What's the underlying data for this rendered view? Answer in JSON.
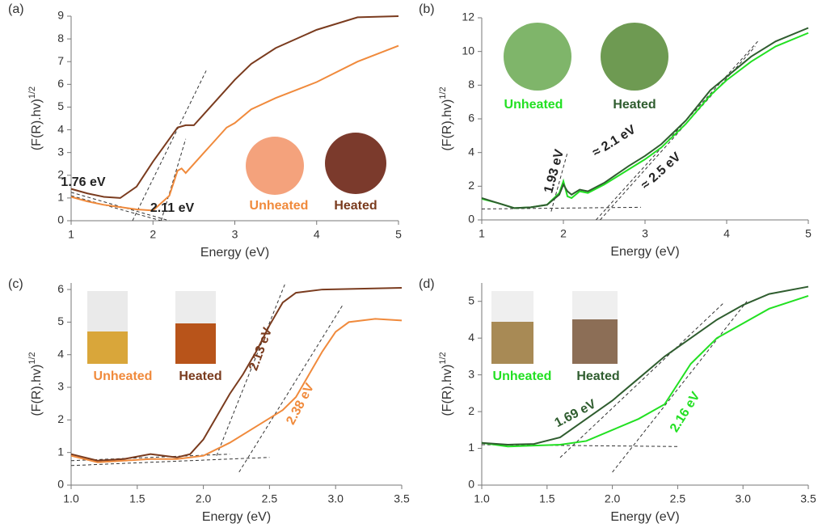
{
  "chart_data": [
    {
      "type": "line",
      "panel": "(a)",
      "x_label": "Energy (eV)",
      "y_label": "(F(R).hv)",
      "y_label_sup": "1/2",
      "xlim": [
        1,
        5
      ],
      "ylim": [
        0,
        9
      ],
      "xticks": [
        1,
        2,
        3,
        4,
        5
      ],
      "yticks": [
        0,
        1,
        2,
        3,
        4,
        5,
        6,
        7,
        8,
        9
      ],
      "series": [
        {
          "name": "Unheated",
          "color": "#f08a3c",
          "x": [
            1,
            1.2,
            1.4,
            1.6,
            1.8,
            2.0,
            2.2,
            2.3,
            2.35,
            2.4,
            2.5,
            2.7,
            2.9,
            3.0,
            3.2,
            3.5,
            4.0,
            4.5,
            5.0
          ],
          "values": [
            1.05,
            0.85,
            0.7,
            0.6,
            0.5,
            0.45,
            1.1,
            2.2,
            2.3,
            2.1,
            2.5,
            3.3,
            4.1,
            4.3,
            4.9,
            5.4,
            6.1,
            7.0,
            7.7
          ]
        },
        {
          "name": "Heated",
          "color": "#7a3b1e",
          "x": [
            1,
            1.2,
            1.4,
            1.6,
            1.8,
            2.0,
            2.2,
            2.3,
            2.4,
            2.5,
            2.6,
            2.8,
            3.0,
            3.2,
            3.5,
            4.0,
            4.5,
            5.0
          ],
          "values": [
            1.4,
            1.2,
            1.05,
            1.0,
            1.5,
            2.6,
            3.6,
            4.1,
            4.2,
            4.2,
            4.6,
            5.4,
            6.2,
            6.9,
            7.6,
            8.4,
            8.95,
            9.0
          ]
        }
      ],
      "tangents": [
        {
          "x": [
            1.75,
            2.65
          ],
          "y": [
            0,
            6.6
          ]
        },
        {
          "x": [
            2.1,
            2.4
          ],
          "y": [
            0,
            3.6
          ]
        },
        {
          "x": [
            1,
            2.1
          ],
          "y": [
            1.1,
            0
          ]
        },
        {
          "x": [
            1,
            2.2
          ],
          "y": [
            1.25,
            0
          ]
        }
      ],
      "annotations": [
        "1.76 eV",
        "2.11 eV"
      ]
    },
    {
      "type": "line",
      "panel": "(b)",
      "x_label": "Energy (eV)",
      "y_label": "(F(R).hv)",
      "y_label_sup": "1/2",
      "xlim": [
        1,
        5
      ],
      "ylim": [
        0,
        12
      ],
      "xticks": [
        1,
        2,
        3,
        4,
        5
      ],
      "yticks": [
        0,
        2,
        4,
        6,
        8,
        10,
        12
      ],
      "series": [
        {
          "name": "Unheated",
          "color": "#22e022",
          "x": [
            1,
            1.2,
            1.4,
            1.6,
            1.8,
            1.95,
            2.0,
            2.05,
            2.1,
            2.2,
            2.3,
            2.5,
            2.8,
            3.0,
            3.2,
            3.5,
            3.8,
            4.0,
            4.3,
            4.6,
            5.0
          ],
          "values": [
            1.25,
            1.0,
            0.7,
            0.75,
            0.9,
            1.6,
            2.3,
            1.4,
            1.3,
            1.7,
            1.6,
            2.1,
            3.0,
            3.6,
            4.3,
            5.7,
            7.4,
            8.3,
            9.4,
            10.3,
            11.1
          ]
        },
        {
          "name": "Heated",
          "color": "#2f5d2f",
          "x": [
            1,
            1.2,
            1.4,
            1.6,
            1.8,
            1.95,
            2.0,
            2.05,
            2.1,
            2.2,
            2.3,
            2.5,
            2.8,
            3.0,
            3.2,
            3.5,
            3.8,
            4.0,
            4.3,
            4.6,
            5.0
          ],
          "values": [
            1.3,
            1.0,
            0.7,
            0.75,
            0.9,
            1.5,
            2.1,
            1.7,
            1.5,
            1.8,
            1.7,
            2.2,
            3.2,
            3.8,
            4.5,
            5.9,
            7.7,
            8.5,
            9.7,
            10.6,
            11.4
          ]
        }
      ],
      "tangents": [
        {
          "x": [
            1.85,
            2.05
          ],
          "y": [
            0.5,
            4.0
          ]
        },
        {
          "x": [
            2.4,
            4.4
          ],
          "y": [
            0,
            10.7
          ]
        },
        {
          "x": [
            2.45,
            4.35
          ],
          "y": [
            0,
            10.3
          ]
        },
        {
          "x": [
            1,
            2.95
          ],
          "y": [
            0.65,
            0.75
          ]
        }
      ],
      "annotations": [
        "1.93 eV",
        "≈ 2.1 eV",
        "≈ 2.5 eV"
      ]
    },
    {
      "type": "line",
      "panel": "(c)",
      "x_label": "Energy (eV)",
      "y_label": "(F(R).hv)",
      "y_label_sup": "1/2",
      "xlim": [
        1,
        3.5
      ],
      "ylim": [
        0,
        6.2
      ],
      "xticks": [
        {
          "value": 1,
          "label": "1.0"
        },
        1.5,
        {
          "value": 2,
          "label": "2.0"
        },
        2.5,
        {
          "value": 3,
          "label": "3.0"
        },
        3.5
      ],
      "yticks": [
        0,
        1,
        2,
        3,
        4,
        5,
        6
      ],
      "series": [
        {
          "name": "Unheated",
          "color": "#f08a3c",
          "x": [
            1.0,
            1.2,
            1.4,
            1.6,
            1.8,
            2.0,
            2.2,
            2.4,
            2.6,
            2.7,
            2.8,
            2.9,
            3.0,
            3.1,
            3.3,
            3.5
          ],
          "values": [
            0.9,
            0.7,
            0.75,
            0.8,
            0.8,
            0.9,
            1.3,
            1.8,
            2.3,
            2.7,
            3.4,
            4.1,
            4.7,
            5.0,
            5.1,
            5.05
          ]
        },
        {
          "name": "Heated",
          "color": "#7a3b1e",
          "x": [
            1.0,
            1.2,
            1.4,
            1.6,
            1.8,
            1.9,
            2.0,
            2.1,
            2.2,
            2.3,
            2.4,
            2.5,
            2.6,
            2.7,
            2.9,
            3.5
          ],
          "values": [
            0.95,
            0.75,
            0.8,
            0.95,
            0.85,
            0.95,
            1.4,
            2.1,
            2.8,
            3.4,
            4.1,
            4.9,
            5.6,
            5.9,
            6.0,
            6.05
          ]
        }
      ],
      "tangents": [
        {
          "x": [
            2.1,
            2.62
          ],
          "y": [
            0.9,
            6.2
          ]
        },
        {
          "x": [
            2.27,
            3.05
          ],
          "y": [
            0.4,
            5.5
          ]
        },
        {
          "x": [
            1,
            2.5
          ],
          "y": [
            0.6,
            0.85
          ]
        },
        {
          "x": [
            1,
            2.2
          ],
          "y": [
            0.75,
            0.95
          ]
        }
      ],
      "annotations": [
        "2.13 eV",
        "2.38 eV"
      ]
    },
    {
      "type": "line",
      "panel": "(d)",
      "x_label": "Energy (eV)",
      "y_label": "(F(R).hv)",
      "y_label_sup": "1/2",
      "xlim": [
        1,
        3.5
      ],
      "ylim": [
        0,
        5.5
      ],
      "xticks": [
        {
          "value": 1,
          "label": "1.0"
        },
        1.5,
        {
          "value": 2,
          "label": "2.0"
        },
        2.5,
        {
          "value": 3,
          "label": "3.0"
        },
        3.5
      ],
      "yticks": [
        0,
        1,
        2,
        3,
        4,
        5
      ],
      "series": [
        {
          "name": "Unheated",
          "color": "#22e022",
          "x": [
            1.0,
            1.2,
            1.6,
            1.8,
            2.0,
            2.2,
            2.4,
            2.6,
            2.8,
            3.0,
            3.2,
            3.5
          ],
          "values": [
            1.15,
            1.05,
            1.1,
            1.2,
            1.5,
            1.8,
            2.2,
            3.3,
            4.0,
            4.4,
            4.8,
            5.15
          ]
        },
        {
          "name": "Heated",
          "color": "#2f5d2f",
          "x": [
            1.0,
            1.2,
            1.4,
            1.6,
            1.8,
            2.0,
            2.2,
            2.4,
            2.6,
            2.8,
            3.0,
            3.2,
            3.5
          ],
          "values": [
            1.15,
            1.1,
            1.12,
            1.3,
            1.8,
            2.3,
            2.9,
            3.5,
            4.0,
            4.5,
            4.9,
            5.2,
            5.4
          ]
        }
      ],
      "tangents": [
        {
          "x": [
            1.6,
            2.85
          ],
          "y": [
            0.75,
            4.95
          ]
        },
        {
          "x": [
            2.0,
            3.03
          ],
          "y": [
            0.35,
            5.0
          ]
        },
        {
          "x": [
            1,
            2.5
          ],
          "y": [
            1.1,
            1.05
          ]
        }
      ],
      "annotations": [
        "1.69 eV",
        "2.16 eV"
      ]
    }
  ]
}
